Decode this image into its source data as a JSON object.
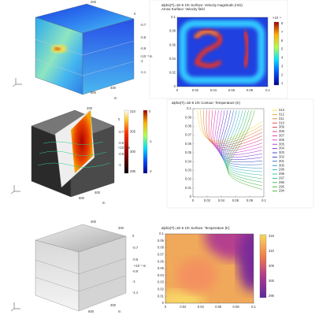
{
  "views": [
    {
      "labels": [
        "200",
        "0",
        "-0.7",
        "-0.8",
        "-0.9",
        "-1",
        "-1.1",
        "×10⁻³ m",
        "400",
        "600",
        "m"
      ]
    },
    {
      "labels": [
        "200",
        "0",
        "-0.7",
        "-0.8",
        "-0.9",
        "-1",
        "×10⁻³ m",
        "400",
        "600",
        "m"
      ],
      "colorbar_ticks": [
        "310",
        "305",
        "300",
        "295"
      ],
      "colorbar2_ticks": [
        "0",
        "-1",
        "-2"
      ]
    },
    {
      "labels": [
        "400",
        "200",
        "0",
        "-0.7",
        "-0.8",
        "-0.9",
        "-1",
        "-1.1",
        "×10⁻³ m",
        "400",
        "600",
        "m"
      ]
    }
  ],
  "panels": [
    {
      "title": "alpha(T)=1E-6 1/K   Surface: Velocity magnitude (m/s)",
      "subtitle": "Arrow Surface: Velocity field",
      "x_ticks": [
        "0",
        "0.02",
        "0.04",
        "0.06",
        "0.08",
        "0.1"
      ],
      "y_ticks": [
        "0.1",
        "0.08",
        "0.06",
        "0.04",
        "0.02",
        "0"
      ],
      "colorbar_unit": "×10⁻⁴",
      "colorbar_ticks": [
        "8",
        "7",
        "6",
        "5",
        "4",
        "3",
        "2",
        "1"
      ]
    },
    {
      "title": "alpha(T)=1E-6 1/K   Contour: Temperature (K)",
      "x_ticks": [
        "0",
        "0.02",
        "0.04",
        "0.06",
        "0.08",
        "0.1"
      ],
      "y_ticks": [
        "0.1",
        "0.09",
        "0.08",
        "0.07",
        "0.06",
        "0.05",
        "0.04",
        "0.03",
        "0.02",
        "0.01",
        "0"
      ],
      "legend": [
        "313",
        "312",
        "311",
        "310",
        "309",
        "308",
        "307",
        "306",
        "305",
        "304",
        "303",
        "302",
        "301",
        "300",
        "299",
        "298",
        "297",
        "296",
        "295",
        "294"
      ]
    },
    {
      "title": "alpha(T)=1E-6 1/K   Surface: Temperature (K)",
      "x_ticks": [
        "0",
        "0.02",
        "0.04",
        "0.06",
        "0.08",
        "0.1"
      ],
      "y_ticks": [
        "0.1",
        "0.09",
        "0.08",
        "0.07",
        "0.06",
        "0.05",
        "0.04",
        "0.03",
        "0.02",
        "0.01",
        "0"
      ],
      "colorbar_ticks": [
        "315",
        "310",
        "305",
        "300",
        "295"
      ]
    }
  ]
}
